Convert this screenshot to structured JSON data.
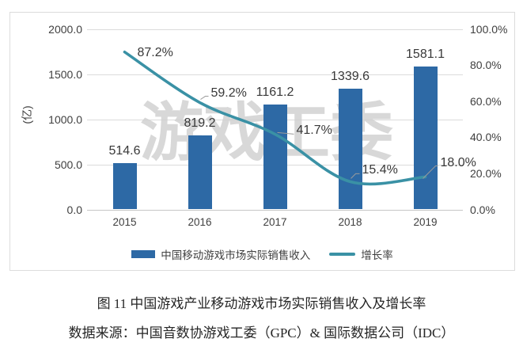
{
  "watermark": "游戏工委",
  "caption": "图 11  中国游戏产业移动游戏市场实际销售收入及增长率",
  "source": "数据来源：中国音数协游戏工委（GPC）& 国际数据公司（IDC）",
  "legend": {
    "bar_label": "中国移动游戏市场实际销售收入",
    "line_label": "增长率"
  },
  "colors": {
    "bar": "#2d69a5",
    "line": "#3a91a5",
    "grid": "#dbdbdb",
    "leader": "#9b9b9b"
  },
  "chart_data": {
    "type": "bar",
    "subtype": "bar+line combo, dual axis",
    "title": "图 11  中国游戏产业移动游戏市场实际销售收入及增长率",
    "categories": [
      "2015",
      "2016",
      "2017",
      "2018",
      "2019"
    ],
    "series": [
      {
        "name": "中国移动游戏市场实际销售收入",
        "type": "bar",
        "axis": "left",
        "values": [
          514.6,
          819.2,
          1161.2,
          1339.6,
          1581.1
        ],
        "labels": [
          "514.6",
          "819.2",
          "1161.2",
          "1339.6",
          "1581.1"
        ],
        "color": "#2d69a5"
      },
      {
        "name": "增长率",
        "type": "line",
        "axis": "right",
        "values": [
          87.2,
          59.2,
          41.7,
          15.4,
          18.0
        ],
        "labels": [
          "87.2%",
          "59.2%",
          "41.7%",
          "15.4%",
          "18.0%"
        ],
        "color": "#3a91a5"
      }
    ],
    "left_axis": {
      "unit_label": "(亿)",
      "min": 0,
      "max": 2000,
      "tick_step": 500,
      "tick_labels": [
        "2000.0",
        "1500.0",
        "1000.0",
        "500.0",
        "0.0"
      ]
    },
    "right_axis": {
      "min": 0,
      "max": 100,
      "tick_step": 20,
      "tick_labels": [
        "100.0%",
        "80.0%",
        "60.0%",
        "40.0%",
        "20.0%",
        "0.0%"
      ]
    },
    "grid": true,
    "legend_position": "bottom"
  }
}
